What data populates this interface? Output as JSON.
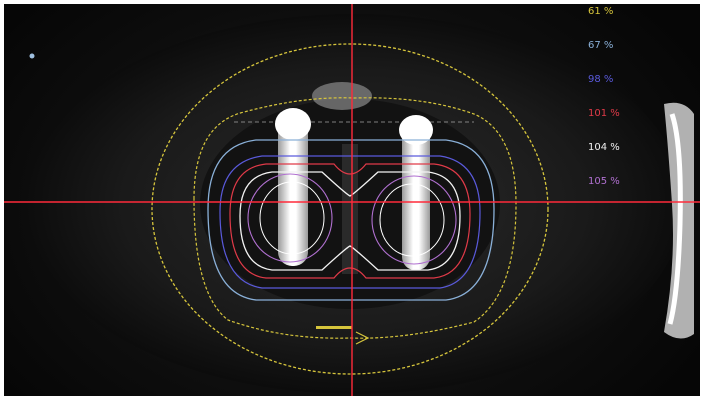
{
  "viewer": {
    "crosshair_color": "#ff2a3a",
    "isodose_legend": [
      {
        "label": "61 %",
        "color": "#d6c53c"
      },
      {
        "label": "67 %",
        "color": "#8ab0d8"
      },
      {
        "label": "98 %",
        "color": "#5a5adc"
      },
      {
        "label": "101 %",
        "color": "#e03a48"
      },
      {
        "label": "104 %",
        "color": "#f2f2f2"
      },
      {
        "label": "105 %",
        "color": "#b070d0"
      }
    ],
    "center_marker_icon": "crosshair-center-icon"
  }
}
